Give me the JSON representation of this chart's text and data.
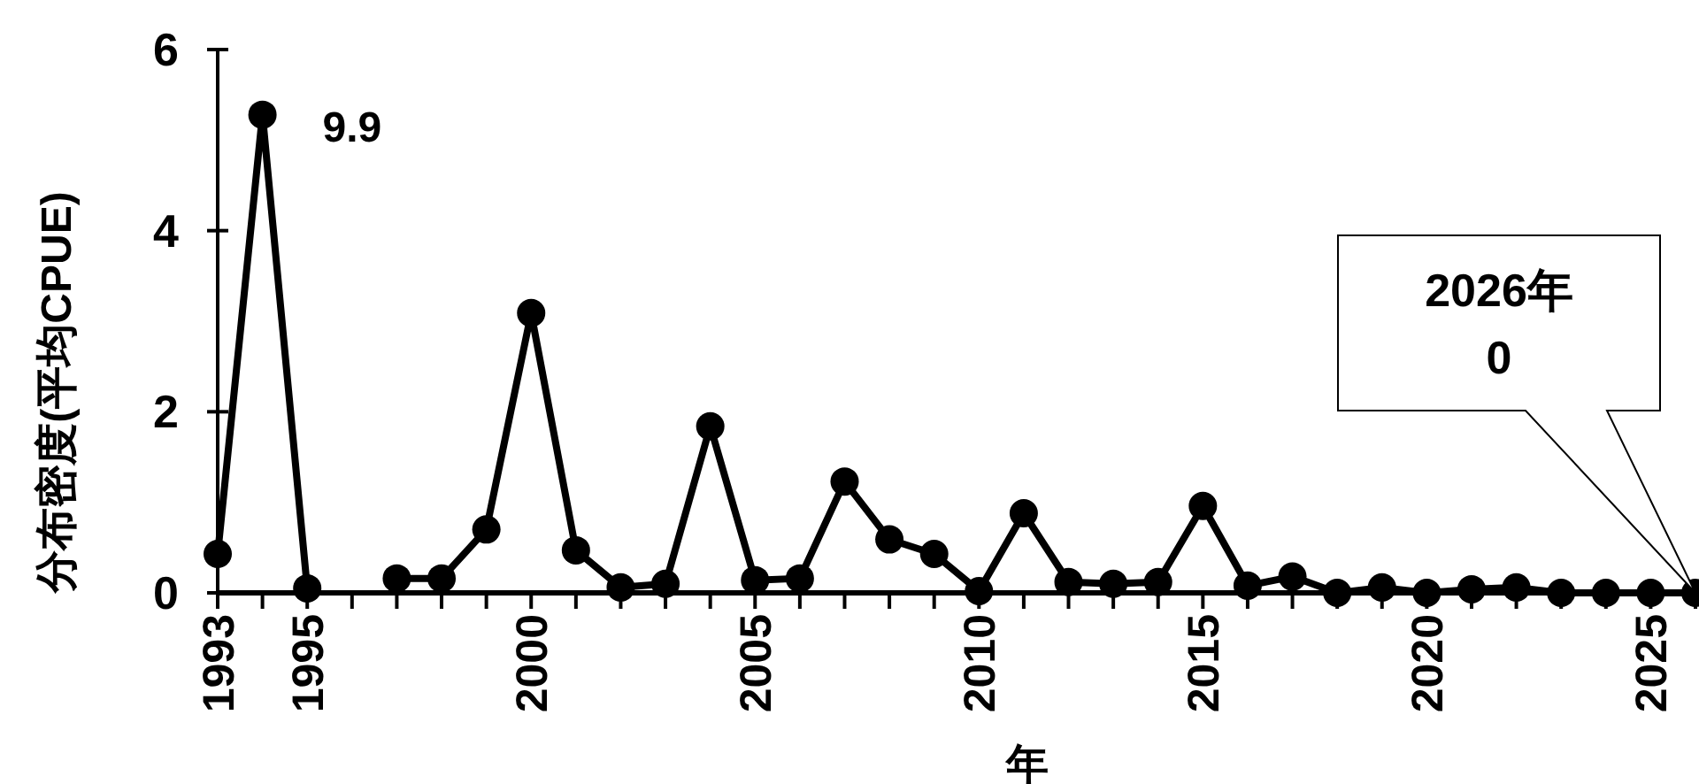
{
  "chart_data": {
    "type": "line",
    "xlabel": "年",
    "ylabel": "分布密度(平均CPUE)",
    "x": [
      1993,
      1994,
      1995,
      1996,
      1997,
      1998,
      1999,
      2000,
      2001,
      2002,
      2003,
      2004,
      2005,
      2006,
      2007,
      2008,
      2009,
      2010,
      2011,
      2012,
      2013,
      2014,
      2015,
      2016,
      2017,
      2018,
      2019,
      2020,
      2021,
      2022,
      2023,
      2024,
      2025,
      2026
    ],
    "values": [
      0.43,
      5.28,
      0.05,
      null,
      0.16,
      0.16,
      0.7,
      3.09,
      0.47,
      0.06,
      0.1,
      1.84,
      0.14,
      0.16,
      1.23,
      0.59,
      0.43,
      0.02,
      0.88,
      0.12,
      0.1,
      0.12,
      0.96,
      0.08,
      0.18,
      0,
      0.06,
      0,
      0.04,
      0.06,
      0,
      0,
      0,
      0
    ],
    "color": "#000000",
    "marker": "circle",
    "line_style": "solid",
    "xlim": [
      1993,
      2026
    ],
    "xticks": [
      1993,
      {
        "value": 1994,
        "label": null
      },
      1995,
      {
        "value": 1996,
        "label": null
      },
      {
        "value": 1997,
        "label": null
      },
      {
        "value": 1998,
        "label": null
      },
      {
        "value": 1999,
        "label": null
      },
      2000,
      {
        "value": 2001,
        "label": null
      },
      {
        "value": 2002,
        "label": null
      },
      {
        "value": 2003,
        "label": null
      },
      {
        "value": 2004,
        "label": null
      },
      2005,
      {
        "value": 2006,
        "label": null
      },
      {
        "value": 2007,
        "label": null
      },
      {
        "value": 2008,
        "label": null
      },
      {
        "value": 2009,
        "label": null
      },
      2010,
      {
        "value": 2011,
        "label": null
      },
      {
        "value": 2012,
        "label": null
      },
      {
        "value": 2013,
        "label": null
      },
      {
        "value": 2014,
        "label": null
      },
      2015,
      {
        "value": 2016,
        "label": null
      },
      {
        "value": 2017,
        "label": null
      },
      {
        "value": 2018,
        "label": null
      },
      {
        "value": 2019,
        "label": null
      },
      2020,
      {
        "value": 2021,
        "label": null
      },
      {
        "value": 2022,
        "label": null
      },
      {
        "value": 2023,
        "label": null
      },
      {
        "value": 2024,
        "label": null
      },
      2025,
      {
        "value": 2026,
        "label": null
      }
    ],
    "ylim": [
      0,
      6
    ],
    "yticks": [
      0,
      2,
      4,
      6
    ],
    "annotations": [
      "9.9",
      "2026年\n0"
    ]
  }
}
